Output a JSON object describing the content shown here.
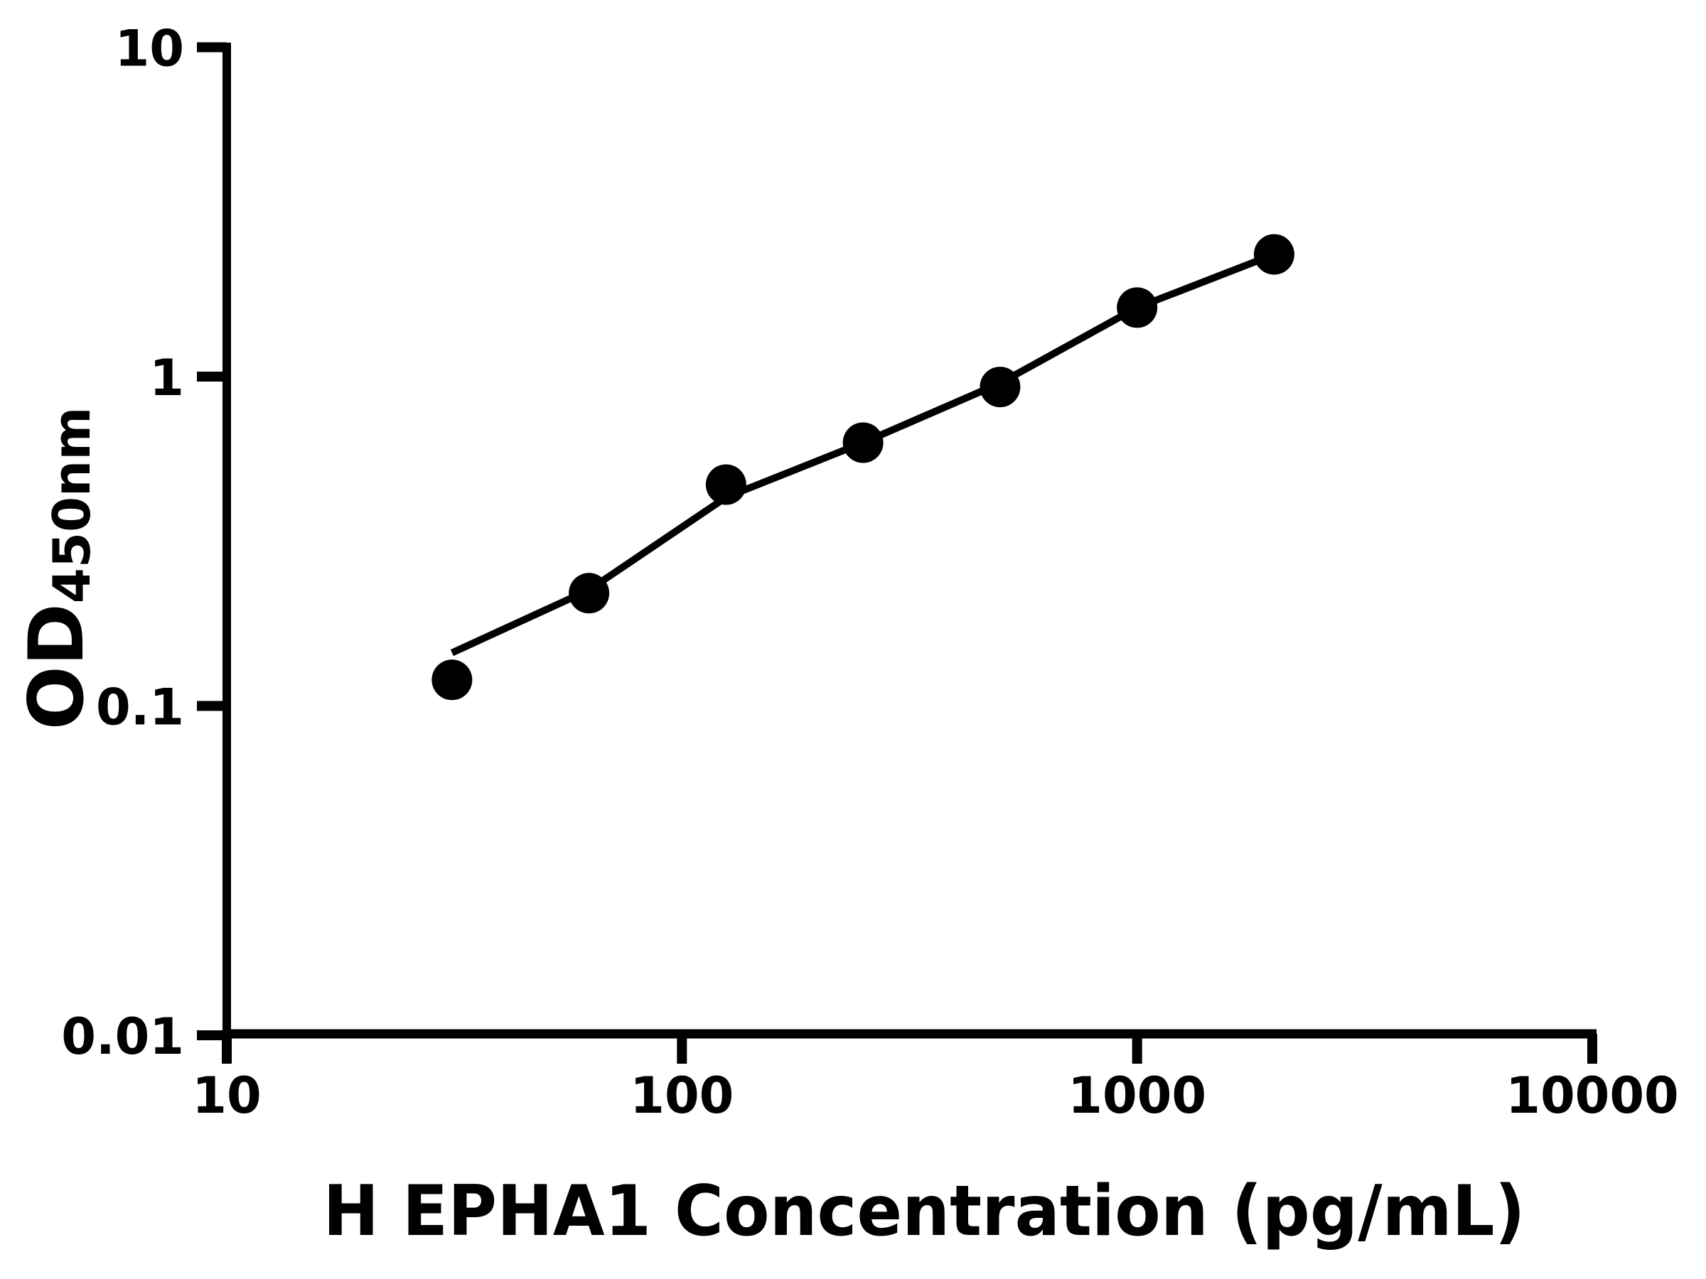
{
  "chart_data": {
    "type": "scatter",
    "title": "",
    "xlabel": "H EPHA1 Concentration (pg/mL)",
    "ylabel": "OD450nm",
    "ylabel_main": "OD",
    "ylabel_sub": "450nm",
    "x_scale": "log",
    "y_scale": "log",
    "xlim": [
      10,
      10000
    ],
    "ylim": [
      0.01,
      10
    ],
    "x_ticks": {
      "values": [
        10,
        100,
        1000,
        10000
      ],
      "labels": [
        "10",
        "100",
        "1000",
        "10000"
      ]
    },
    "y_ticks": {
      "values": [
        10,
        1,
        0.1,
        0.01
      ],
      "labels": [
        "10",
        "1",
        "0.1",
        "0.01"
      ]
    },
    "grid": false,
    "legend": false,
    "ink_color": "#000000",
    "background_color": "#ffffff",
    "marker": "circle",
    "series": [
      {
        "name": "standard-points",
        "type": "scatter",
        "x": [
          31.25,
          62.5,
          125,
          250,
          500,
          1000,
          2000
        ],
        "y": [
          0.12,
          0.22,
          0.47,
          0.63,
          0.93,
          1.62,
          2.35
        ]
      },
      {
        "name": "fitted-curve",
        "type": "line",
        "x": [
          31.25,
          62.5,
          125,
          250,
          500,
          1000,
          2000
        ],
        "y": [
          0.145,
          0.225,
          0.43,
          0.63,
          0.955,
          1.62,
          2.35
        ]
      }
    ]
  }
}
